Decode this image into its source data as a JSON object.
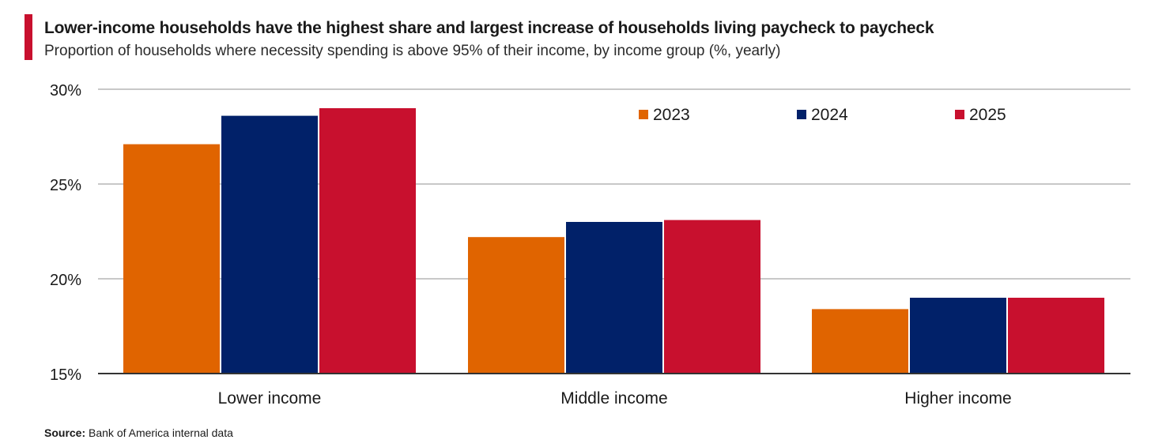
{
  "header": {
    "title": "Lower-income households have the highest share and largest increase of households living paycheck to paycheck",
    "subtitle": "Proportion of households where necessity spending is above 95% of their income, by income group (%, yearly)"
  },
  "footer": {
    "source_label": "Source:",
    "source_text": "Bank of America internal data"
  },
  "colors": {
    "accent": "#c8102e",
    "grid": "#c8c8c8",
    "axis": "#333333",
    "text": "#1a1a1a"
  },
  "chart_data": {
    "type": "bar",
    "categories": [
      "Lower income",
      "Middle income",
      "Higher income"
    ],
    "series": [
      {
        "name": "2023",
        "color": "#e06400",
        "values": [
          27.1,
          22.2,
          18.4
        ]
      },
      {
        "name": "2024",
        "color": "#012169",
        "values": [
          28.6,
          23.0,
          19.0
        ]
      },
      {
        "name": "2025",
        "color": "#c8102e",
        "values": [
          29.0,
          23.1,
          19.0
        ]
      }
    ],
    "ylim": [
      15,
      30
    ],
    "yticks": [
      15,
      20,
      25,
      30
    ],
    "ytick_labels": [
      "15%",
      "20%",
      "25%",
      "30%"
    ],
    "xlabel": "",
    "ylabel": "",
    "grid": true,
    "legend": "top-right"
  }
}
